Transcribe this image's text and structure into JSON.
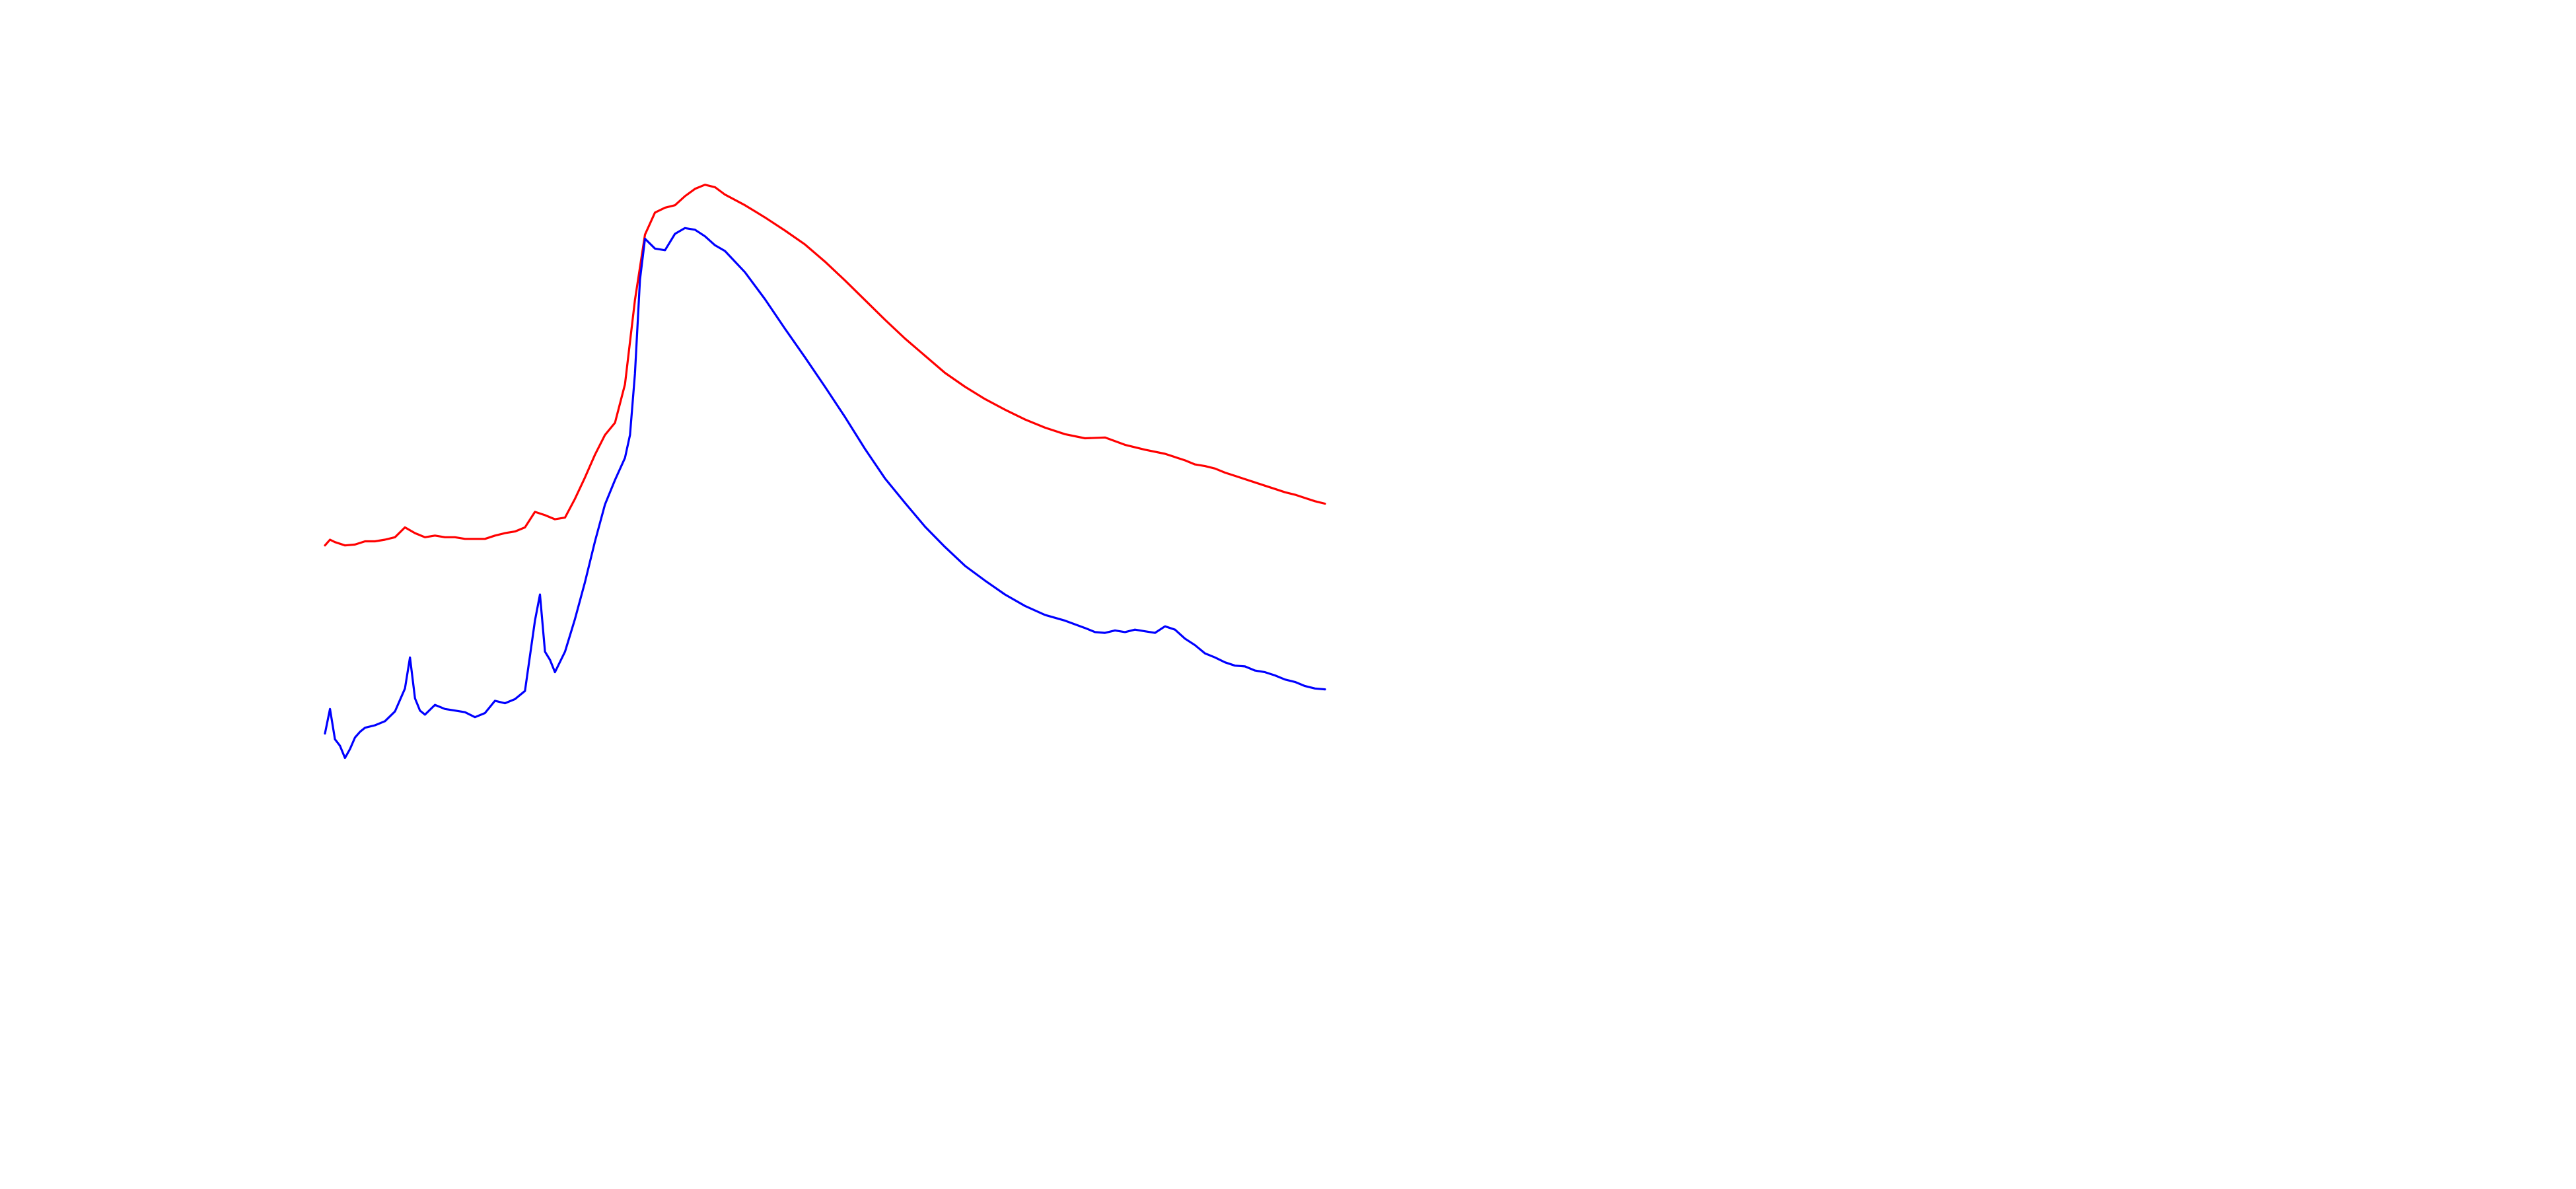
{
  "chart_data": {
    "type": "line",
    "title": "",
    "xlabel": "",
    "ylabel": "",
    "grid": false,
    "legend": "none",
    "xlim": [
      0,
      100
    ],
    "ylim": [
      0,
      100
    ],
    "series": [
      {
        "color": "#ff0000",
        "x": [
          0,
          0.5,
          1,
          2,
          3,
          4,
          5,
          6,
          7,
          8,
          9,
          10,
          11,
          12,
          13,
          14,
          15,
          16,
          17,
          18,
          19,
          20,
          21,
          22,
          23,
          24,
          25,
          26,
          27,
          28,
          29,
          30,
          31,
          32,
          33,
          34,
          35,
          36,
          37,
          38,
          39,
          40,
          42,
          44,
          46,
          48,
          50,
          52,
          54,
          56,
          58,
          60,
          62,
          64,
          66,
          68,
          70,
          72,
          74,
          76,
          78,
          80,
          82,
          84,
          86,
          87,
          88,
          89,
          90,
          91,
          92,
          93,
          94,
          95,
          96,
          97,
          98,
          99,
          100
        ],
        "y": [
          53.5,
          54.2,
          53.9,
          53.5,
          53.6,
          54.0,
          54.0,
          54.2,
          54.5,
          55.7,
          55.0,
          54.5,
          54.7,
          54.5,
          54.5,
          54.3,
          54.3,
          54.3,
          54.7,
          55.0,
          55.2,
          55.7,
          57.6,
          57.2,
          56.7,
          56.9,
          59.2,
          61.8,
          64.6,
          67.0,
          68.5,
          73.2,
          83.5,
          91.5,
          94.2,
          94.8,
          95.1,
          96.2,
          97.1,
          97.6,
          97.3,
          96.4,
          95.1,
          93.6,
          92.0,
          90.3,
          88.2,
          85.9,
          83.5,
          81.1,
          78.8,
          76.7,
          74.6,
          72.9,
          71.4,
          70.1,
          68.9,
          67.9,
          67.1,
          66.6,
          66.7,
          65.8,
          65.2,
          64.7,
          63.9,
          63.4,
          63.2,
          62.9,
          62.4,
          62.0,
          61.6,
          61.2,
          60.8,
          60.4,
          60.0,
          59.7,
          59.3,
          58.9,
          58.6
        ]
      },
      {
        "color": "#0000ff",
        "x": [
          0,
          0.5,
          1,
          1.5,
          2,
          2.5,
          3,
          3.5,
          4,
          5,
          6,
          7,
          8,
          8.5,
          9,
          9.5,
          10,
          11,
          12,
          13,
          14,
          15,
          16,
          17,
          18,
          19,
          20,
          21,
          21.5,
          22,
          22.5,
          23,
          24,
          25,
          26,
          27,
          28,
          29,
          30,
          30.5,
          31,
          31.5,
          32,
          33,
          34,
          35,
          36,
          37,
          38,
          39,
          40,
          42,
          44,
          46,
          48,
          50,
          52,
          54,
          56,
          58,
          60,
          62,
          64,
          66,
          68,
          70,
          72,
          74,
          76,
          77,
          78,
          79,
          80,
          81,
          82,
          83,
          84,
          85,
          86,
          87,
          88,
          89,
          90,
          91,
          92,
          93,
          94,
          95,
          96,
          97,
          98,
          99,
          100
        ],
        "y": [
          30.5,
          33.5,
          29.8,
          29.0,
          27.5,
          28.6,
          30.0,
          30.7,
          31.2,
          31.5,
          32.0,
          33.2,
          36.0,
          39.8,
          34.8,
          33.3,
          32.8,
          34.0,
          33.5,
          33.3,
          33.1,
          32.5,
          33.0,
          34.5,
          34.2,
          34.7,
          35.7,
          44.3,
          47.5,
          40.5,
          39.5,
          38.0,
          40.5,
          44.5,
          49.0,
          54.0,
          58.5,
          61.5,
          64.2,
          67.0,
          74.5,
          86.0,
          91.0,
          89.8,
          89.6,
          91.6,
          92.3,
          92.1,
          91.3,
          90.2,
          89.5,
          86.9,
          83.6,
          80.0,
          76.5,
          72.9,
          69.2,
          65.3,
          61.7,
          58.7,
          55.8,
          53.3,
          51.0,
          49.2,
          47.5,
          46.1,
          45.0,
          44.3,
          43.4,
          42.9,
          42.8,
          43.1,
          42.9,
          43.2,
          43.0,
          42.8,
          43.6,
          43.2,
          42.1,
          41.3,
          40.3,
          39.8,
          39.2,
          38.8,
          38.7,
          38.2,
          38.0,
          37.6,
          37.1,
          36.8,
          36.3,
          36.0,
          35.9
        ]
      }
    ]
  }
}
